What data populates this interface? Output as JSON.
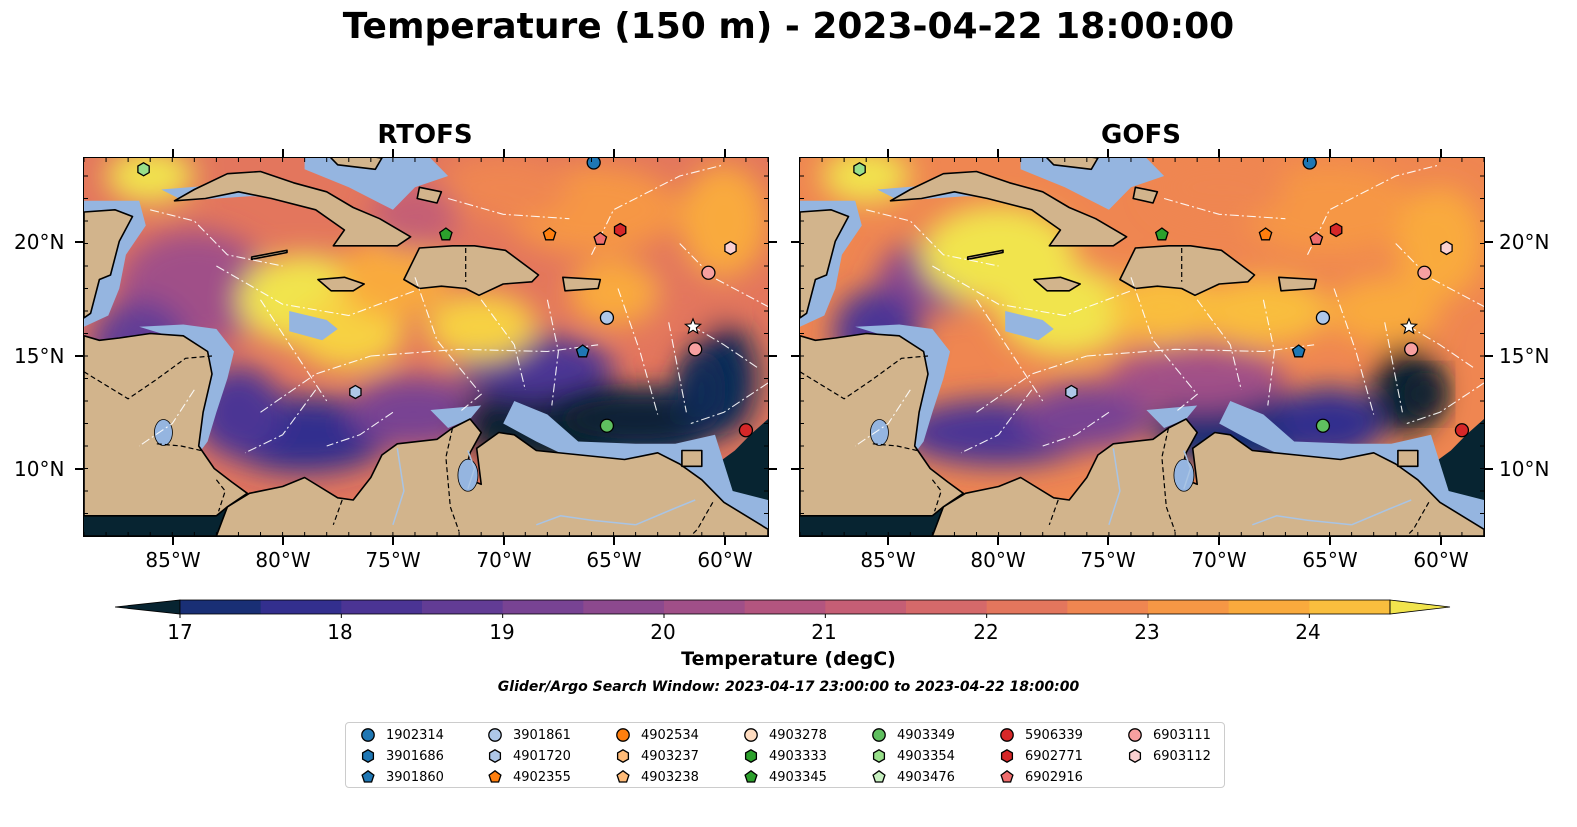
{
  "title": "Temperature (150 m) - 2023-04-22 18:00:00",
  "panels": [
    {
      "title": "RTOFS",
      "variant": "rtofs"
    },
    {
      "title": "GOFS",
      "variant": "gofs"
    }
  ],
  "y_ticks": [
    "20°N",
    "15°N",
    "10°N"
  ],
  "x_ticks": [
    "85°W",
    "80°W",
    "75°W",
    "70°W",
    "65°W",
    "60°W"
  ],
  "colorbar": {
    "label": "Temperature (degC)",
    "ticks": [
      "17",
      "18",
      "19",
      "20",
      "21",
      "22",
      "23",
      "24"
    ],
    "range_degC": [
      17,
      24.5
    ],
    "extend": "both",
    "colors": [
      "#072431",
      "#0c2a56",
      "#192f75",
      "#332f8e",
      "#4b3494",
      "#623c95",
      "#784393",
      "#8c498e",
      "#a04f88",
      "#b3557f",
      "#c55e75",
      "#d5696a",
      "#e3765d",
      "#ef8651",
      "#f69745",
      "#f9aa3d",
      "#f9be3e",
      "#f7d143",
      "#f1e44d"
    ]
  },
  "search_window": "Glider/Argo Search Window: 2023-04-17 23:00:00 to 2023-04-22 18:00:00",
  "legend": [
    {
      "label": "1902314",
      "color": "#1f77b4",
      "marker": "circle"
    },
    {
      "label": "3901686",
      "color": "#1f77b4",
      "marker": "hexagon"
    },
    {
      "label": "3901860",
      "color": "#1f77b4",
      "marker": "pentagon"
    },
    {
      "label": "3901861",
      "color": "#aec7e8",
      "marker": "circle"
    },
    {
      "label": "4901720",
      "color": "#aec7e8",
      "marker": "hexagon"
    },
    {
      "label": "4902355",
      "color": "#ff7f0e",
      "marker": "pentagon"
    },
    {
      "label": "4902534",
      "color": "#ff7f0e",
      "marker": "circle"
    },
    {
      "label": "4903237",
      "color": "#ffbb78",
      "marker": "hexagon"
    },
    {
      "label": "4903238",
      "color": "#ffbb78",
      "marker": "pentagon"
    },
    {
      "label": "4903278",
      "color": "#ffdcc0",
      "marker": "circle"
    },
    {
      "label": "4903333",
      "color": "#2ca02c",
      "marker": "hexagon"
    },
    {
      "label": "4903345",
      "color": "#2ca02c",
      "marker": "pentagon"
    },
    {
      "label": "4903349",
      "color": "#5fbf5f",
      "marker": "circle"
    },
    {
      "label": "4903354",
      "color": "#98df8a",
      "marker": "hexagon"
    },
    {
      "label": "4903476",
      "color": "#c7f0c0",
      "marker": "pentagon"
    },
    {
      "label": "5906339",
      "color": "#d62728",
      "marker": "circle"
    },
    {
      "label": "6902771",
      "color": "#d62728",
      "marker": "hexagon"
    },
    {
      "label": "6902916",
      "color": "#ef6d6d",
      "marker": "pentagon"
    },
    {
      "label": "6903111",
      "color": "#f7a0a0",
      "marker": "circle"
    },
    {
      "label": "6903112",
      "color": "#fbd0d0",
      "marker": "hexagon"
    }
  ],
  "floats": [
    {
      "lon": -86.3,
      "lat": 23.3,
      "marker": "hexagon",
      "color": "#98df8a"
    },
    {
      "lon": -65.9,
      "lat": 23.6,
      "marker": "circle",
      "color": "#1f77b4"
    },
    {
      "lon": -72.6,
      "lat": 20.4,
      "marker": "pentagon",
      "color": "#2ca02c"
    },
    {
      "lon": -67.9,
      "lat": 20.4,
      "marker": "pentagon",
      "color": "#ff7f0e"
    },
    {
      "lon": -65.6,
      "lat": 20.2,
      "marker": "pentagon",
      "color": "#ef6d6d"
    },
    {
      "lon": -64.7,
      "lat": 20.6,
      "marker": "hexagon",
      "color": "#d62728"
    },
    {
      "lon": -59.7,
      "lat": 19.8,
      "marker": "hexagon",
      "color": "#fbd0d0"
    },
    {
      "lon": -60.7,
      "lat": 18.7,
      "marker": "circle",
      "color": "#f7a0a0"
    },
    {
      "lon": -65.3,
      "lat": 16.7,
      "marker": "circle",
      "color": "#aec7e8"
    },
    {
      "lon": -66.4,
      "lat": 15.2,
      "marker": "pentagon",
      "color": "#1f77b4"
    },
    {
      "lon": -61.3,
      "lat": 15.3,
      "marker": "circle",
      "color": "#f7a0a0"
    },
    {
      "lon": -76.7,
      "lat": 13.4,
      "marker": "hexagon",
      "color": "#aec7e8"
    },
    {
      "lon": -65.3,
      "lat": 11.9,
      "marker": "circle",
      "color": "#5fbf5f"
    },
    {
      "lon": -59.0,
      "lat": 11.7,
      "marker": "circle",
      "color": "#d62728"
    }
  ]
}
